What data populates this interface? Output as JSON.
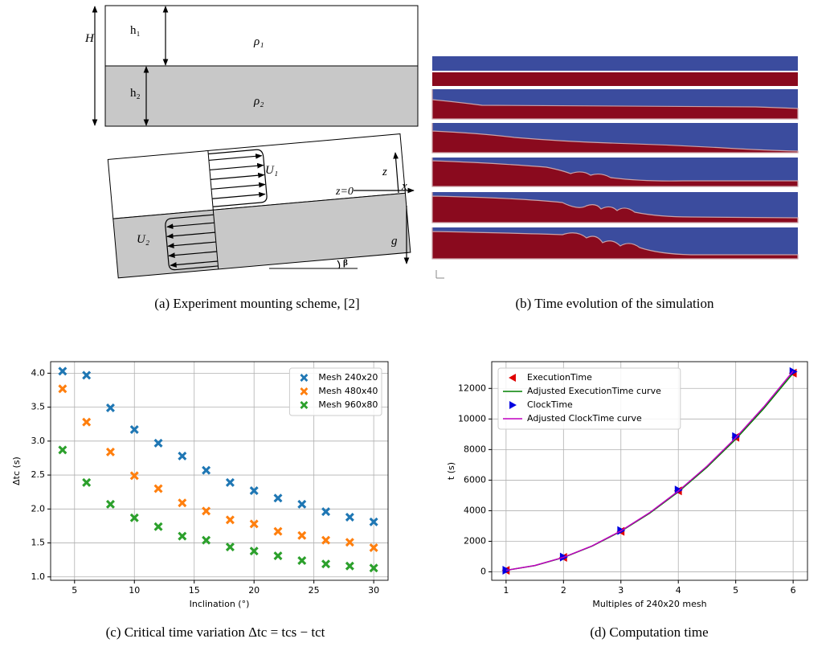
{
  "figure": {
    "diagram": {
      "H": "H",
      "h1": "h₁",
      "rho1": "ρ₁",
      "h2": "h₂",
      "rho2": "ρ₂",
      "U1": "U₁",
      "U2": "U₂",
      "z_axis": "z",
      "x_axis": "x",
      "z0": "z=0",
      "g": "g",
      "beta": "β"
    },
    "captions": [
      "(a) Experiment mounting scheme, [2]",
      "(b) Time evolution of the simulation",
      "(c) Critical time variation Δtc = tcs − tct",
      "(d) Computation time"
    ]
  },
  "chart_data": [
    {
      "type": "scatter",
      "xlabel": "Inclination (°)",
      "ylabel": "Δtc (s)",
      "x": [
        4,
        6,
        8,
        10,
        12,
        14,
        16,
        18,
        20,
        22,
        24,
        26,
        28,
        30
      ],
      "series": [
        {
          "name": "Mesh 240x20",
          "color": "#1f77b4",
          "marker": "X",
          "values": [
            4.03,
            3.97,
            3.49,
            3.17,
            2.97,
            2.78,
            2.57,
            2.39,
            2.27,
            2.16,
            2.07,
            1.96,
            1.88,
            1.81
          ]
        },
        {
          "name": "Mesh 480x40",
          "color": "#ff7f0e",
          "marker": "X",
          "values": [
            3.77,
            3.28,
            2.84,
            2.49,
            2.3,
            2.09,
            1.97,
            1.84,
            1.78,
            1.67,
            1.61,
            1.54,
            1.51,
            1.43
          ]
        },
        {
          "name": "Mesh 960x80",
          "color": "#2ca02c",
          "marker": "X",
          "values": [
            2.87,
            2.39,
            2.07,
            1.87,
            1.74,
            1.6,
            1.54,
            1.44,
            1.38,
            1.31,
            1.24,
            1.19,
            1.16,
            1.13
          ]
        }
      ],
      "xlim": [
        3,
        31.2
      ],
      "xticks": [
        5,
        10,
        15,
        20,
        25,
        30
      ],
      "ylim": [
        0.95,
        4.17
      ],
      "yticks": [
        {
          "value": 1,
          "label": "1.0"
        },
        1.5,
        {
          "value": 2,
          "label": "2.0"
        },
        2.5,
        {
          "value": 3,
          "label": "3.0"
        },
        3.5,
        {
          "value": 4,
          "label": "4.0"
        }
      ],
      "grid": true,
      "legend": "upper right"
    },
    {
      "type": "line",
      "xlabel": "Multiples of 240x20 mesh",
      "ylabel": "t (s)",
      "series": [
        {
          "name": "ExecutionTime",
          "color": "#e00000",
          "marker": "<",
          "x": [
            1,
            2,
            3,
            4,
            5,
            6
          ],
          "values": [
            100,
            950,
            2650,
            5300,
            8800,
            13000
          ]
        },
        {
          "name": "Adjusted ExecutionTime curve",
          "color": "#008000",
          "x": [
            1,
            1.5,
            2,
            2.5,
            3,
            3.5,
            4,
            4.5,
            5,
            5.5,
            6
          ],
          "values": [
            100,
            411,
            940,
            1686,
            2650,
            3831,
            5230,
            6846,
            8680,
            10731,
            13000
          ]
        },
        {
          "name": "ClockTime",
          "color": "#0000e0",
          "marker": ">",
          "x": [
            1,
            2,
            3,
            4,
            5,
            6
          ],
          "values": [
            110,
            970,
            2700,
            5350,
            8850,
            13100
          ]
        },
        {
          "name": "Adjusted ClockTime curve",
          "color": "#c000c0",
          "x": [
            1,
            1.5,
            2,
            2.5,
            3,
            3.5,
            4,
            4.5,
            5,
            5.5,
            6
          ],
          "values": [
            101,
            415,
            950,
            1703,
            2680,
            3870,
            5285,
            6915,
            8770,
            10840,
            13130
          ]
        }
      ],
      "xlim": [
        0.75,
        6.25
      ],
      "xticks": [
        1,
        2,
        3,
        4,
        5,
        6
      ],
      "ylim": [
        -550,
        13750
      ],
      "yticks": [
        0,
        2000,
        4000,
        6000,
        8000,
        10000,
        12000
      ],
      "grid": true,
      "legend": "upper left"
    }
  ]
}
